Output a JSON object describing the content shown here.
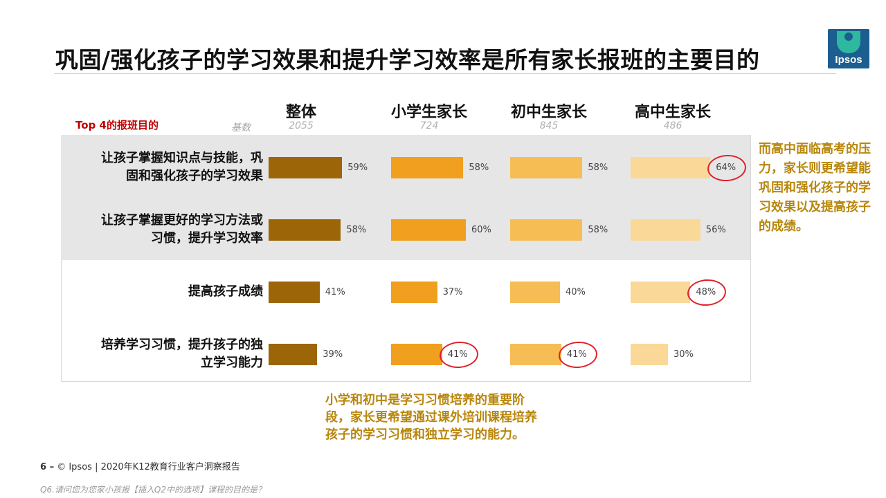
{
  "title": "巩固/强化孩子的学习效果和提升学习效率是所有家长报班的主要目的",
  "logo_text": "Ipsos",
  "chart_data": {
    "type": "bar",
    "subtitle": "Top 4的报班目的",
    "base_label": "基数",
    "groups": [
      {
        "name": "整体",
        "base": "2055",
        "color": "#9c6508"
      },
      {
        "name": "小学生家长",
        "base": "724",
        "color": "#f0a01e"
      },
      {
        "name": "初中生家长",
        "base": "845",
        "color": "#f6bd55"
      },
      {
        "name": "高中生家长",
        "base": "486",
        "color": "#fad898"
      }
    ],
    "categories": [
      "让孩子掌握知识点与技能，巩固和强化孩子的学习效果",
      "让孩子掌握更好的学习方法或习惯，提升学习效率",
      "提高孩子成绩",
      "培养学习习惯，提升孩子的独立学习能力"
    ],
    "category_lines": [
      [
        "让孩子掌握知识点与技能，巩",
        "固和强化孩子的学习效果"
      ],
      [
        "让孩子掌握更好的学习方法或",
        "习惯，提升学习效率"
      ],
      [
        "提高孩子成绩"
      ],
      [
        "培养学习习惯，提升孩子的独",
        "立学习能力"
      ]
    ],
    "series": [
      {
        "name": "整体",
        "values": [
          59,
          58,
          41,
          39
        ]
      },
      {
        "name": "小学生家长",
        "values": [
          58,
          60,
          37,
          41
        ]
      },
      {
        "name": "初中生家长",
        "values": [
          58,
          58,
          40,
          41
        ]
      },
      {
        "name": "高中生家长",
        "values": [
          64,
          56,
          48,
          30
        ]
      }
    ],
    "value_suffix": "%",
    "highlighted": [
      [
        3,
        0
      ],
      [
        3,
        2
      ],
      [
        1,
        3
      ],
      [
        2,
        3
      ]
    ],
    "highlight_color": "#e0202a"
  },
  "notes": {
    "right": "而高中面临高考的压力，家长则更希望能巩固和强化孩子的学习效果以及提高孩子的成绩。",
    "bottom": "小学和初中是学习习惯培养的重要阶段，家长更希望通过课外培训课程培养孩子的学习习惯和独立学习的能力。"
  },
  "footer": {
    "page": "6 –",
    "text": "© Ipsos | 2020年K12教育行业客户洞察报告"
  },
  "question": "Q6.请问您为您家小孩报【插入Q2中的选项】课程的目的是？"
}
